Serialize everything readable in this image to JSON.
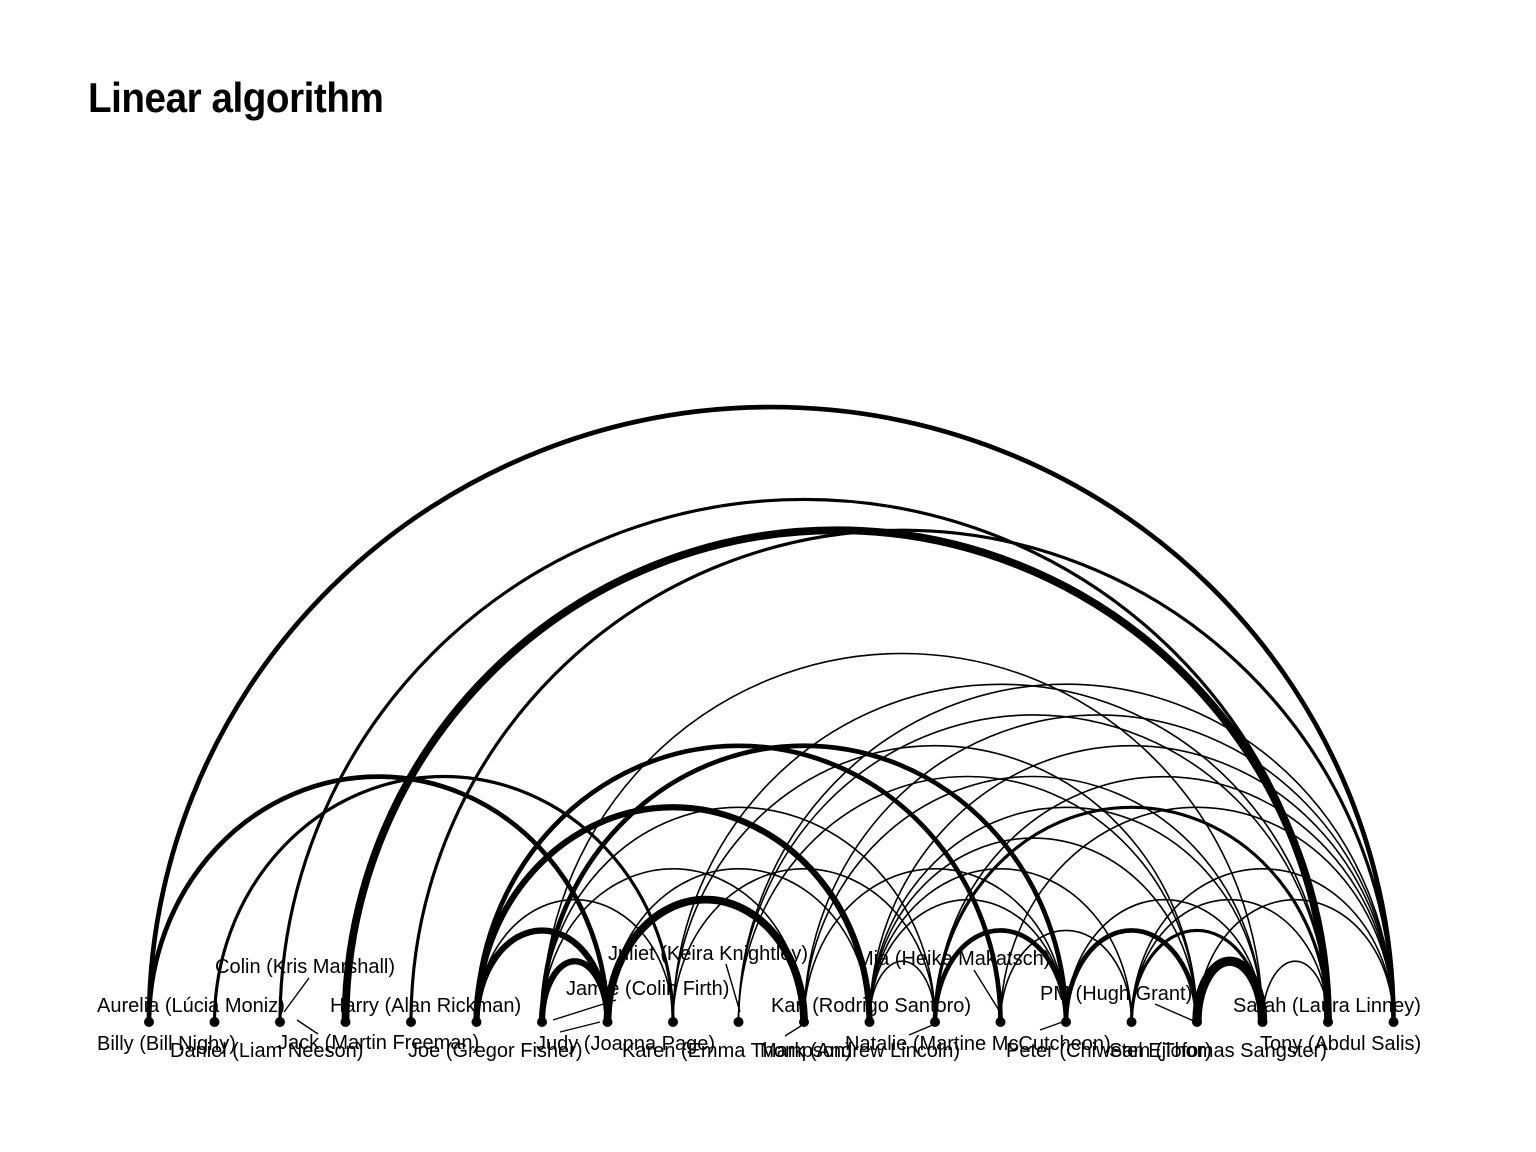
{
  "title": "Linear algorithm",
  "nodes": [
    {
      "id": "billy",
      "name": "Billy (Bill Nighy)"
    },
    {
      "id": "aurelia",
      "name": "Aurelia (Lúcia Moniz)"
    },
    {
      "id": "colin",
      "name": "Colin (Kris Marshall)"
    },
    {
      "id": "daniel",
      "name": "Daniel (Liam Neeson)"
    },
    {
      "id": "jack",
      "name": "Jack (Martin Freeman)"
    },
    {
      "id": "harry",
      "name": "Harry (Alan Rickman)"
    },
    {
      "id": "joe",
      "name": "Joe (Gregor Fisher)"
    },
    {
      "id": "jamie",
      "name": "Jamie (Colin Firth)"
    },
    {
      "id": "judy",
      "name": "Judy (Joanna Page)"
    },
    {
      "id": "juliet",
      "name": "Juliet (Keira Knightley)"
    },
    {
      "id": "karen",
      "name": "Karen (Emma Thompson)"
    },
    {
      "id": "karl",
      "name": "Karl (Rodrigo Santoro)"
    },
    {
      "id": "mark",
      "name": "Mark (Andrew Lincoln)"
    },
    {
      "id": "mia",
      "name": "Mia (Heike Makatsch)"
    },
    {
      "id": "natalie",
      "name": "Natalie (Martine McCutcheon)"
    },
    {
      "id": "peter",
      "name": "Peter (Chiwetel Ejiofor)"
    },
    {
      "id": "pm",
      "name": "PM (Hugh Grant)"
    },
    {
      "id": "sam",
      "name": "Sam (Thomas Sangster)"
    },
    {
      "id": "sarah",
      "name": "Sarah (Laura Linney)"
    },
    {
      "id": "tony",
      "name": "Tony (Abdul Salis)"
    }
  ],
  "edges": [
    {
      "source": "billy",
      "target": "tony",
      "weight": 3
    },
    {
      "source": "billy",
      "target": "jamie",
      "weight": 3
    },
    {
      "source": "aurelia",
      "target": "judy",
      "weight": 2
    },
    {
      "source": "colin",
      "target": "sarah",
      "weight": 2
    },
    {
      "source": "daniel",
      "target": "sarah",
      "weight": 5
    },
    {
      "source": "harry",
      "target": "karl",
      "weight": 4
    },
    {
      "source": "harry",
      "target": "jamie",
      "weight": 4
    },
    {
      "source": "jack",
      "target": "tony",
      "weight": 2
    },
    {
      "source": "harry",
      "target": "mia",
      "weight": 3
    },
    {
      "source": "joe",
      "target": "jamie",
      "weight": 4
    },
    {
      "source": "joe",
      "target": "natalie",
      "weight": 3
    },
    {
      "source": "joe",
      "target": "mark",
      "weight": 1
    },
    {
      "source": "joe",
      "target": "sam",
      "weight": 1
    },
    {
      "source": "jamie",
      "target": "karen",
      "weight": 5
    },
    {
      "source": "jamie",
      "target": "karl",
      "weight": 1
    },
    {
      "source": "harry",
      "target": "judy",
      "weight": 1
    },
    {
      "source": "joe",
      "target": "karen",
      "weight": 1
    },
    {
      "source": "judy",
      "target": "mark",
      "weight": 1
    },
    {
      "source": "judy",
      "target": "pm",
      "weight": 1
    },
    {
      "source": "judy",
      "target": "sarah",
      "weight": 1
    },
    {
      "source": "karen",
      "target": "sam",
      "weight": 1
    },
    {
      "source": "karen",
      "target": "tony",
      "weight": 1
    },
    {
      "source": "karen",
      "target": "natalie",
      "weight": 1
    },
    {
      "source": "juliet",
      "target": "sarah",
      "weight": 1
    },
    {
      "source": "juliet",
      "target": "pm",
      "weight": 1
    },
    {
      "source": "juliet",
      "target": "tony",
      "weight": 1
    },
    {
      "source": "karl",
      "target": "sam",
      "weight": 1
    },
    {
      "source": "karl",
      "target": "mark",
      "weight": 1
    },
    {
      "source": "karl",
      "target": "natalie",
      "weight": 1
    },
    {
      "source": "karl",
      "target": "peter",
      "weight": 1
    },
    {
      "source": "karl",
      "target": "tony",
      "weight": 1
    },
    {
      "source": "karl",
      "target": "pm",
      "weight": 1
    },
    {
      "source": "mark",
      "target": "natalie",
      "weight": 3
    },
    {
      "source": "mark",
      "target": "sarah",
      "weight": 2
    },
    {
      "source": "mark",
      "target": "tony",
      "weight": 1
    },
    {
      "source": "natalie",
      "target": "pm",
      "weight": 3
    },
    {
      "source": "mia",
      "target": "peter",
      "weight": 1
    },
    {
      "source": "natalie",
      "target": "sam",
      "weight": 1
    },
    {
      "source": "peter",
      "target": "sam",
      "weight": 2
    },
    {
      "source": "peter",
      "target": "sarah",
      "weight": 1
    },
    {
      "source": "pm",
      "target": "sam",
      "weight": 6
    },
    {
      "source": "sam",
      "target": "sarah",
      "weight": 1
    },
    {
      "source": "mia",
      "target": "tony",
      "weight": 1
    },
    {
      "source": "peter",
      "target": "tony",
      "weight": 1
    },
    {
      "source": "pm",
      "target": "tony",
      "weight": 1
    }
  ]
}
